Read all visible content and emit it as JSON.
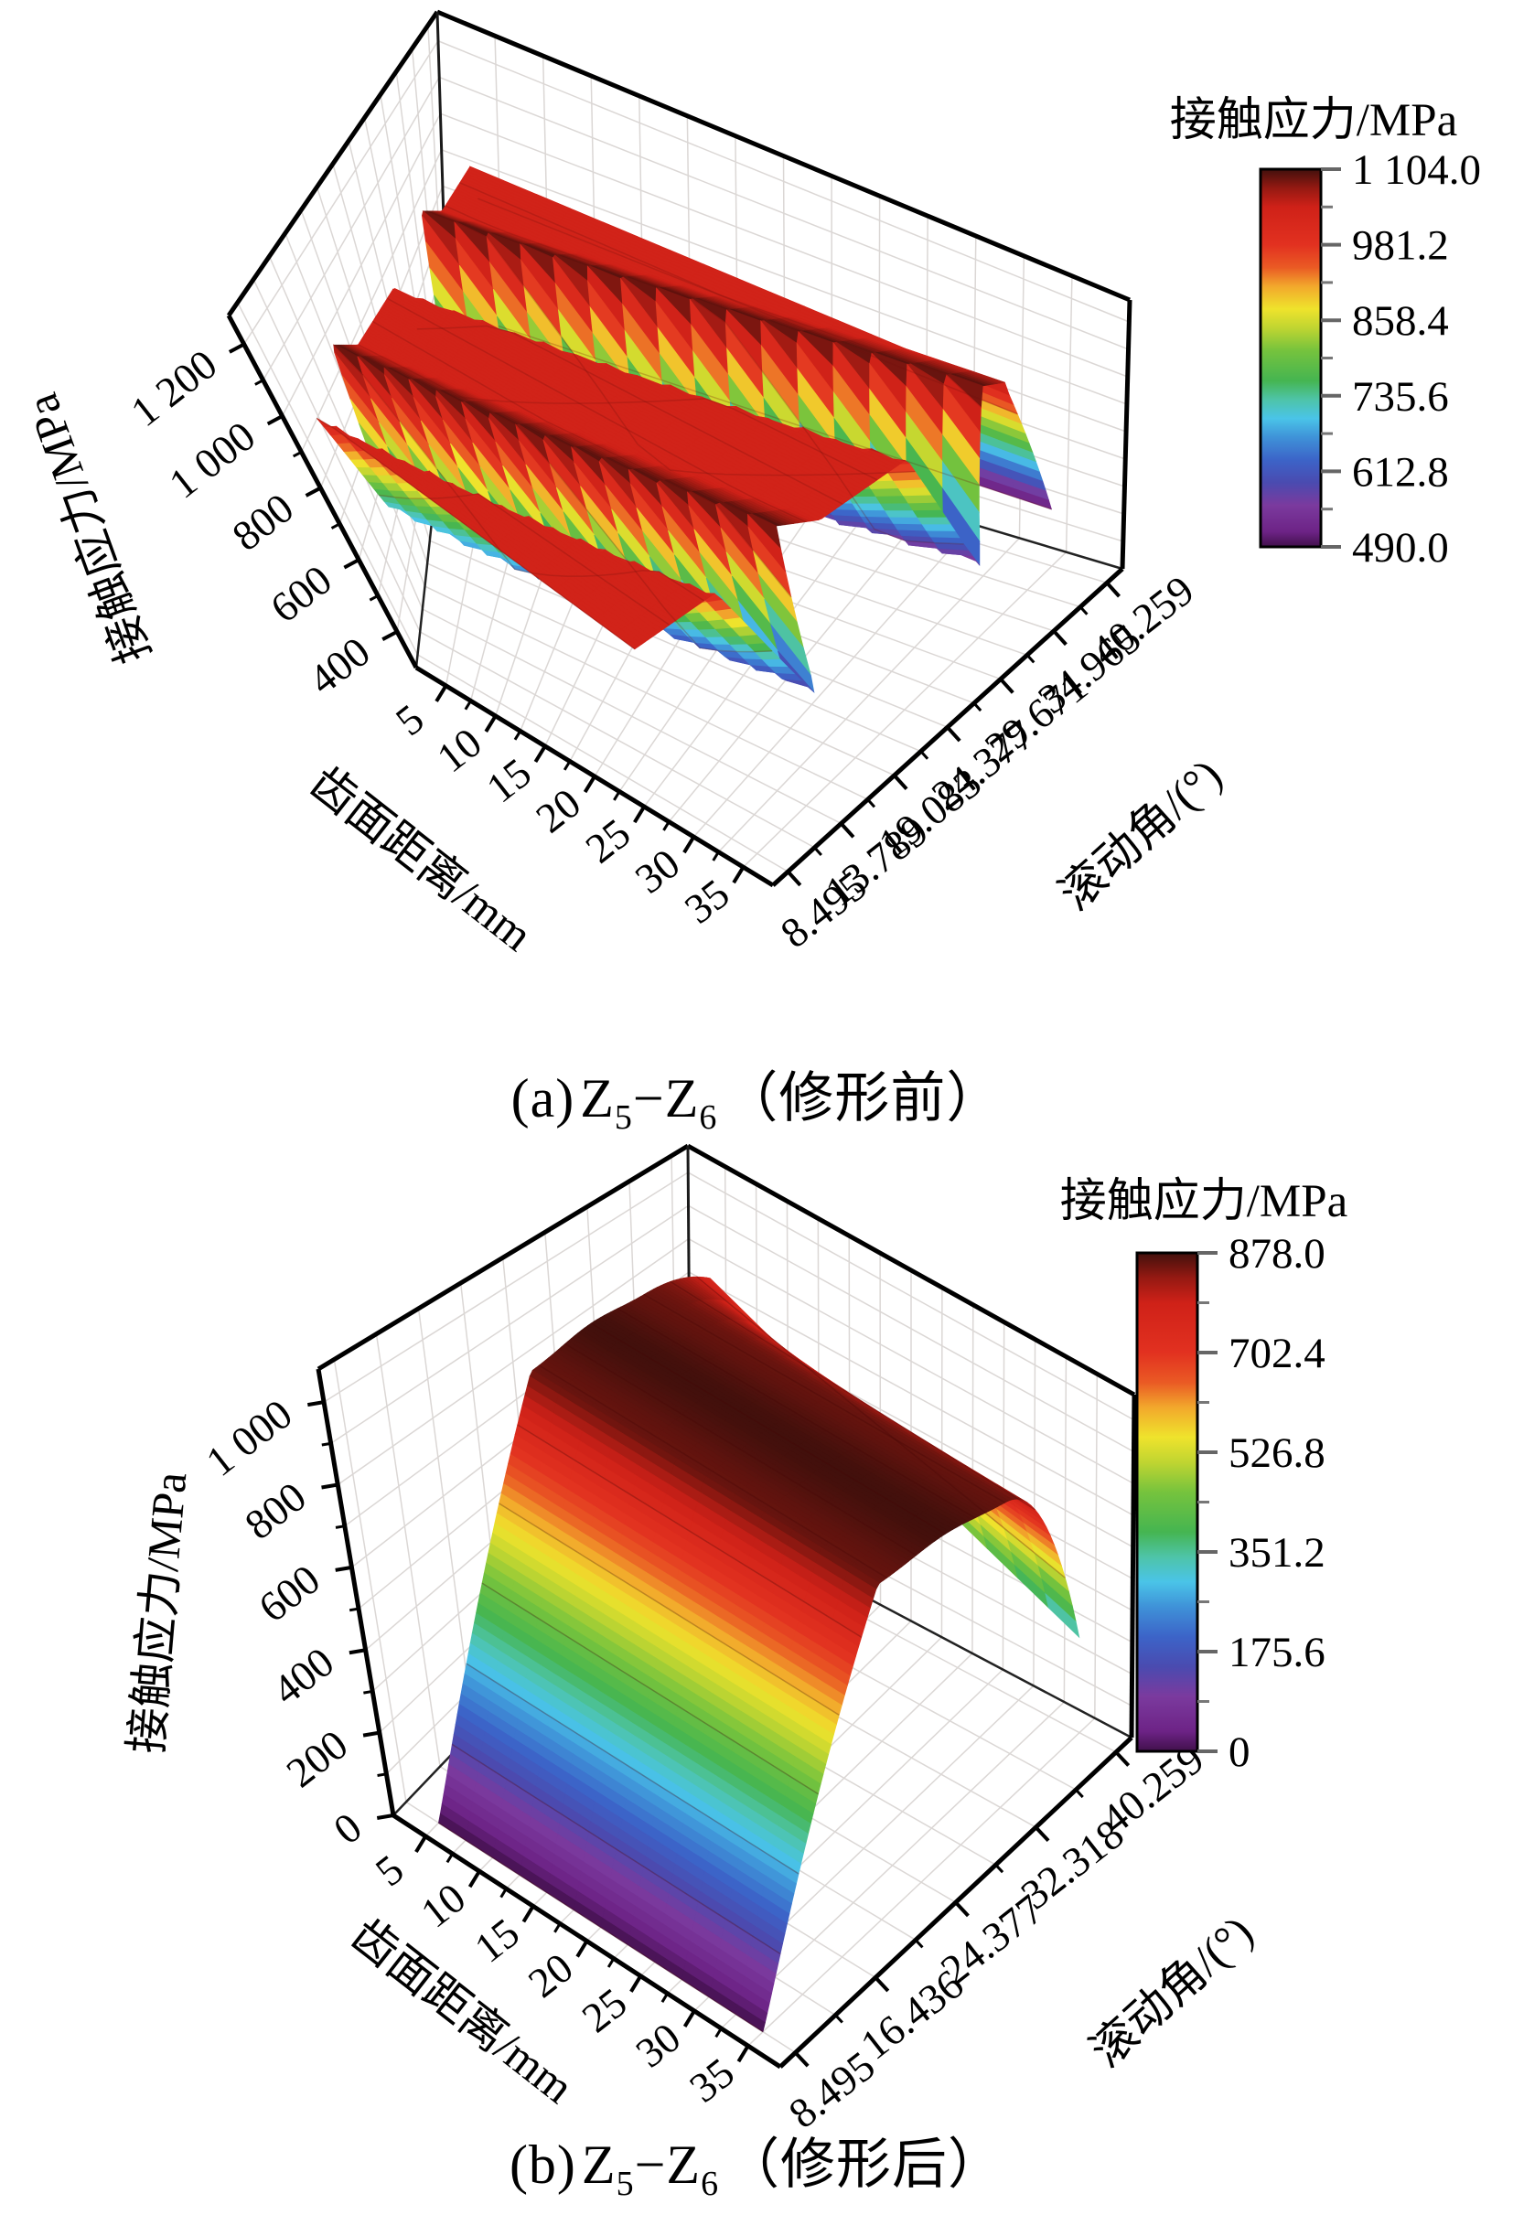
{
  "page": {
    "background": "#ffffff"
  },
  "colormap": [
    {
      "f": 0.0,
      "c": "#41104b"
    },
    {
      "f": 0.04,
      "c": "#6d2386"
    },
    {
      "f": 0.11,
      "c": "#7b3a9e"
    },
    {
      "f": 0.17,
      "c": "#4a4bb0"
    },
    {
      "f": 0.23,
      "c": "#3c64c8"
    },
    {
      "f": 0.29,
      "c": "#3f92d8"
    },
    {
      "f": 0.34,
      "c": "#4ac4e8"
    },
    {
      "f": 0.39,
      "c": "#4ec4a8"
    },
    {
      "f": 0.44,
      "c": "#45b551"
    },
    {
      "f": 0.52,
      "c": "#76c33d"
    },
    {
      "f": 0.58,
      "c": "#c0d531"
    },
    {
      "f": 0.63,
      "c": "#efe32c"
    },
    {
      "f": 0.69,
      "c": "#f2a82c"
    },
    {
      "f": 0.74,
      "c": "#ea5a24"
    },
    {
      "f": 0.8,
      "c": "#e23120"
    },
    {
      "f": 0.9,
      "c": "#cf2118"
    },
    {
      "f": 0.95,
      "c": "#951912"
    },
    {
      "f": 1.0,
      "c": "#42100c"
    }
  ],
  "chart_data": [
    {
      "type": "surface3d",
      "caption": "(a) Z5−Z6（修形前）",
      "caption_parts": {
        "index": "(a)",
        "z1": "Z",
        "z1sub": "5",
        "dash": "−",
        "z2": "Z",
        "z2sub": "6",
        "suffix": "（修形前）"
      },
      "xlabel": "齿面距离/mm",
      "ylabel": "滚动角/(°)",
      "zlabel": "接触应力/MPa",
      "x_ticks": [
        5,
        10,
        15,
        20,
        25,
        30,
        35
      ],
      "x_tick_labels": [
        "5",
        "10",
        "15",
        "20",
        "25",
        "30",
        "35"
      ],
      "x_range": [
        2,
        38
      ],
      "y_ticks": [
        8.495,
        13.789,
        19.083,
        24.377,
        29.671,
        34.965,
        40.259
      ],
      "y_tick_labels": [
        "8.495",
        "13.789",
        "19.083",
        "24.377",
        "29.671",
        "34.965",
        "40.259"
      ],
      "y_range": [
        7,
        41.8
      ],
      "z_ticks": [
        400,
        600,
        800,
        1000,
        1200
      ],
      "z_tick_labels": [
        "400",
        "600",
        "800",
        "1 000",
        "1 200"
      ],
      "z_range": [
        300,
        1280
      ],
      "color_range": [
        490,
        1104
      ],
      "colorbar": {
        "title": "接触应力/MPa",
        "tick_labels": [
          "1 104.0",
          "981.2",
          "858.4",
          "735.6",
          "612.8",
          "490.0"
        ],
        "tick_values": [
          1104.0,
          981.2,
          858.4,
          735.6,
          612.8,
          490.0
        ],
        "vmin": 490.0,
        "vmax": 1104.0
      },
      "z_grid": {
        "x_at": [
          5,
          10,
          15,
          20,
          25,
          30,
          35
        ],
        "y_at": [
          8.495,
          13.789,
          19.083,
          24.377,
          29.671,
          34.965,
          40.259
        ],
        "values": [
          [
            1035,
            1035,
            1035,
            1035,
            1035,
            1035,
            1035
          ],
          [
            1020,
            795,
            650,
            735,
            835,
            955,
            1035
          ],
          [
            1035,
            1035,
            1035,
            1045,
            1070,
            1090,
            1025
          ],
          [
            940,
            1030,
            1035,
            1035,
            1035,
            1035,
            1035
          ],
          [
            1100,
            935,
            670,
            625,
            705,
            800,
            905
          ],
          [
            1035,
            1035,
            1035,
            1035,
            1055,
            1075,
            1095
          ],
          [
            500,
            500,
            500,
            500,
            500,
            500,
            500
          ]
        ]
      },
      "surface_model": {
        "kind": "zigzag",
        "plateau": 1035,
        "crest": 1104,
        "valleys": [
          {
            "center_start": 0.14,
            "center_slope": 0.18,
            "width_low": 0.1,
            "width_high": 0.05,
            "relax": 0.08,
            "depth_back": 680,
            "depth_front": 560
          },
          {
            "center_start": 0.58,
            "center_slope": 0.18,
            "width_low": 0.12,
            "width_high": 0.05,
            "relax": 0.08,
            "depth_back": 620,
            "depth_front": 520
          }
        ],
        "edge_drop": {
          "v_start": 0.86,
          "span": 0.1,
          "floor_value": 478
        }
      }
    },
    {
      "type": "surface3d",
      "caption": "(b) Z5−Z6（修形后）",
      "caption_parts": {
        "index": "(b)",
        "z1": "Z",
        "z1sub": "5",
        "dash": "−",
        "z2": "Z",
        "z2sub": "6",
        "suffix": "（修形后）"
      },
      "xlabel": "齿面距离/mm",
      "ylabel": "滚动角/(°)",
      "zlabel": "接触应力/MPa",
      "x_ticks": [
        5,
        10,
        15,
        20,
        25,
        30,
        35
      ],
      "x_tick_labels": [
        "5",
        "10",
        "15",
        "20",
        "25",
        "30",
        "35"
      ],
      "x_range": [
        2,
        38
      ],
      "y_ticks": [
        8.495,
        16.436,
        24.377,
        32.318,
        40.259
      ],
      "y_tick_labels": [
        "8.495",
        "16.436",
        "24.377",
        "32.318",
        "40.259"
      ],
      "y_range": [
        7,
        41.8
      ],
      "z_ticks": [
        0,
        200,
        400,
        600,
        800,
        1000
      ],
      "z_tick_labels": [
        "0",
        "200",
        "400",
        "600",
        "800",
        "1 000"
      ],
      "z_range": [
        0,
        1080
      ],
      "color_range": [
        0,
        878
      ],
      "colorbar": {
        "title": "接触应力/MPa",
        "tick_labels": [
          "878.0",
          "702.4",
          "526.8",
          "351.2",
          "175.6",
          "0"
        ],
        "tick_values": [
          878.0,
          702.4,
          526.8,
          351.2,
          175.6,
          0
        ],
        "vmin": 0,
        "vmax": 878.0
      },
      "z_grid": {
        "x_at": [
          5,
          10,
          15,
          20,
          25,
          30,
          35
        ],
        "y_at": [
          8.495,
          16.436,
          24.377,
          32.318,
          40.259
        ],
        "values": [
          [
            0,
            0,
            0,
            0,
            0,
            0,
            0
          ],
          [
            460,
            460,
            460,
            460,
            460,
            460,
            460
          ],
          [
            860,
            860,
            860,
            860,
            860,
            860,
            860
          ],
          [
            865,
            865,
            865,
            865,
            865,
            865,
            865
          ],
          [
            735,
            670,
            605,
            535,
            470,
            405,
            335
          ]
        ]
      },
      "surface_model": {
        "kind": "dome",
        "v_start": 0.043,
        "v_span": 0.9127,
        "ramp_end": 0.454,
        "ramp_exp": 1.05,
        "plateau_base": 856,
        "crest_amp": 22,
        "crest_center": 0.64,
        "crest_width": 0.12,
        "dip_start": 0.8,
        "dip_exp": 2.2,
        "dip_base": 80,
        "dip_scale": 480
      }
    }
  ]
}
